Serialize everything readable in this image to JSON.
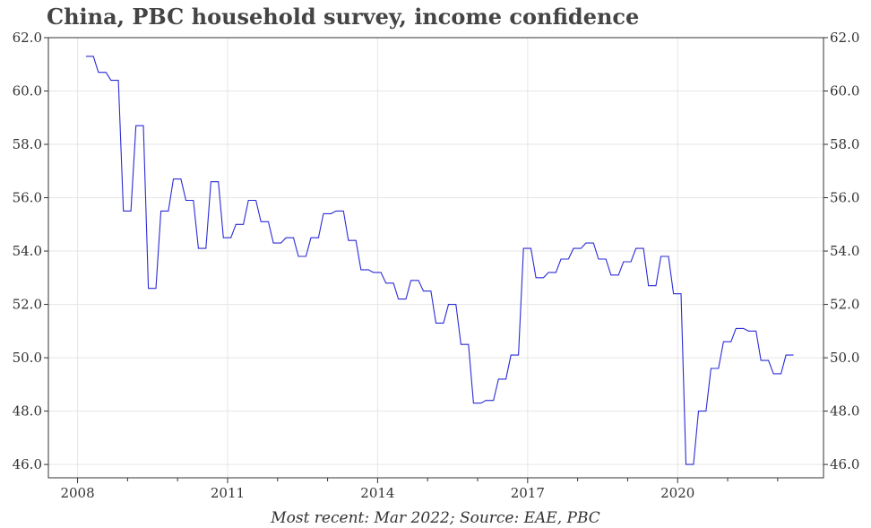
{
  "chart_data": {
    "type": "line",
    "title": "China, PBC household survey, income confidence",
    "footer": "Most recent: Mar 2022; Source: EAE, PBC",
    "xlabel": "",
    "ylabel": "",
    "x_ticks": [
      "2008",
      "2011",
      "2014",
      "2017",
      "2020"
    ],
    "y_ticks": [
      "46.0",
      "48.0",
      "50.0",
      "52.0",
      "54.0",
      "56.0",
      "58.0",
      "60.0",
      "62.0"
    ],
    "ylim": [
      45.5,
      62.0
    ],
    "xlim": [
      "2007-06",
      "2022-12"
    ],
    "grid": true,
    "legend": "none",
    "line_color": "#2b2bd6",
    "series": [
      {
        "x": [
          "2008-03",
          "2008-06",
          "2008-09",
          "2008-12",
          "2009-03",
          "2009-06",
          "2009-09",
          "2009-12",
          "2010-03",
          "2010-06",
          "2010-09",
          "2010-12",
          "2011-03",
          "2011-06",
          "2011-09",
          "2011-12",
          "2012-03",
          "2012-06",
          "2012-09",
          "2012-12",
          "2013-03",
          "2013-06",
          "2013-09",
          "2013-12",
          "2014-03",
          "2014-06",
          "2014-09",
          "2014-12",
          "2015-03",
          "2015-06",
          "2015-09",
          "2015-12",
          "2016-03",
          "2016-06",
          "2016-09",
          "2016-12",
          "2017-03",
          "2017-06",
          "2017-09",
          "2017-12",
          "2018-03",
          "2018-06",
          "2018-09",
          "2018-12",
          "2019-03",
          "2019-06",
          "2019-09",
          "2019-12",
          "2020-03",
          "2020-06",
          "2020-09",
          "2020-12",
          "2021-03",
          "2021-06",
          "2021-09",
          "2021-12",
          "2022-03"
        ],
        "values": [
          61.3,
          60.7,
          60.4,
          55.5,
          58.7,
          52.6,
          55.5,
          56.7,
          55.9,
          54.1,
          56.6,
          54.5,
          55.0,
          55.9,
          55.1,
          54.3,
          54.5,
          53.8,
          54.5,
          55.4,
          55.5,
          54.4,
          53.3,
          53.2,
          52.8,
          52.2,
          52.9,
          52.5,
          51.3,
          52.0,
          50.5,
          48.3,
          48.4,
          49.2,
          50.1,
          54.1,
          53.0,
          53.2,
          53.7,
          54.1,
          54.3,
          53.7,
          53.1,
          53.6,
          54.1,
          52.7,
          53.8,
          52.4,
          46.0,
          48.0,
          49.6,
          50.6,
          51.1,
          51.0,
          49.9,
          49.4,
          50.1
        ]
      }
    ]
  }
}
